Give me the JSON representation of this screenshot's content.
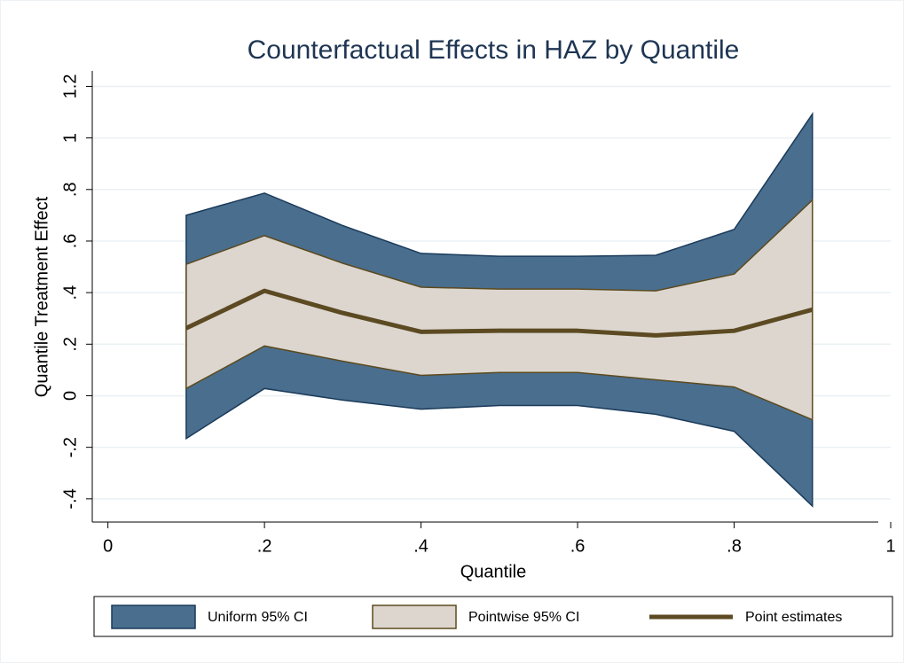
{
  "chart_data": {
    "type": "line",
    "title": "Counterfactual Effects in HAZ by Quantile",
    "x_label": "Quantile",
    "y_label": "Quantile Treatment Effect",
    "x": [
      0.1,
      0.2,
      0.3,
      0.4,
      0.5,
      0.6,
      0.7,
      0.8,
      0.9
    ],
    "series": [
      {
        "name": "Uniform 95% CI",
        "color": "#4a6e8e",
        "edge_color": "#1a3a5a",
        "upper": [
          0.7,
          0.786,
          0.66,
          0.552,
          0.541,
          0.541,
          0.545,
          0.645,
          1.093
        ],
        "lower": [
          -0.166,
          0.028,
          -0.017,
          -0.052,
          -0.038,
          -0.038,
          -0.072,
          -0.138,
          -0.428
        ]
      },
      {
        "name": "Pointwise 95% CI",
        "color": "#dcd6cf",
        "edge_color": "#5c4a1e",
        "upper": [
          0.51,
          0.621,
          0.514,
          0.421,
          0.414,
          0.414,
          0.407,
          0.472,
          0.759
        ],
        "lower": [
          0.028,
          0.193,
          0.134,
          0.079,
          0.09,
          0.09,
          0.062,
          0.034,
          -0.093
        ]
      },
      {
        "name": "Point estimates",
        "color": "#5c4a22",
        "values": [
          0.262,
          0.407,
          0.321,
          0.248,
          0.252,
          0.252,
          0.234,
          0.252,
          0.334
        ]
      }
    ],
    "xlim": [
      -0.02,
      1.0
    ],
    "ylim": [
      -0.49,
      1.26
    ],
    "xticks": [
      0,
      {
        "value": 0.2,
        "label": ".2"
      },
      {
        "value": 0.4,
        "label": ".4"
      },
      {
        "value": 0.6,
        "label": ".6"
      },
      {
        "value": 0.8,
        "label": ".8"
      },
      1
    ],
    "yticks": [
      {
        "value": -0.4,
        "label": "-.4"
      },
      {
        "value": -0.2,
        "label": "-.2"
      },
      0,
      {
        "value": 0.2,
        "label": ".2"
      },
      {
        "value": 0.4,
        "label": ".4"
      },
      {
        "value": 0.6,
        "label": ".6"
      },
      {
        "value": 0.8,
        "label": ".8"
      },
      1,
      {
        "value": 1.2,
        "label": "1.2"
      }
    ],
    "grid": true,
    "legend": "bottom"
  }
}
